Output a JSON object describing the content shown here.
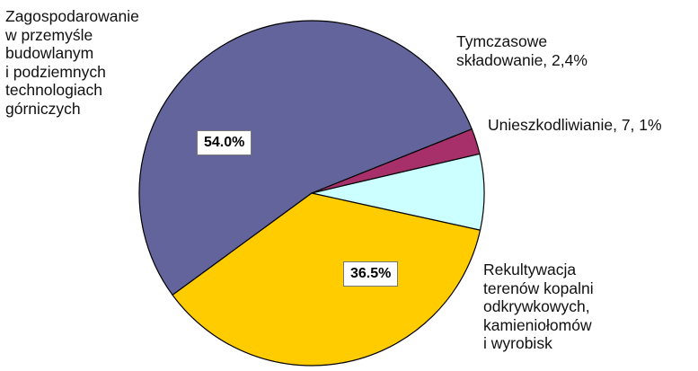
{
  "chart_data": {
    "type": "pie",
    "slices": [
      {
        "label": "Zagospodarowanie\nw przemyśle\nbudowlanym\ni podziemnych\ntechnologiach\ngórniczych",
        "value": 54.0,
        "value_text": "54.0%",
        "color": "#63649c"
      },
      {
        "label": "Tymczasowe\nskładowanie, 2,4%",
        "value": 2.4,
        "color": "#a8306a"
      },
      {
        "label": "Unieszkodliwianie, 7, 1%",
        "value": 7.1,
        "color": "#ccffff"
      },
      {
        "label": "Rekultywacja\nterenów kopalni\nodkrywkowych,\nkamieniołomów\ni wyrobisk",
        "value": 36.5,
        "value_text": "36.5%",
        "color": "#ffcc00"
      }
    ]
  }
}
